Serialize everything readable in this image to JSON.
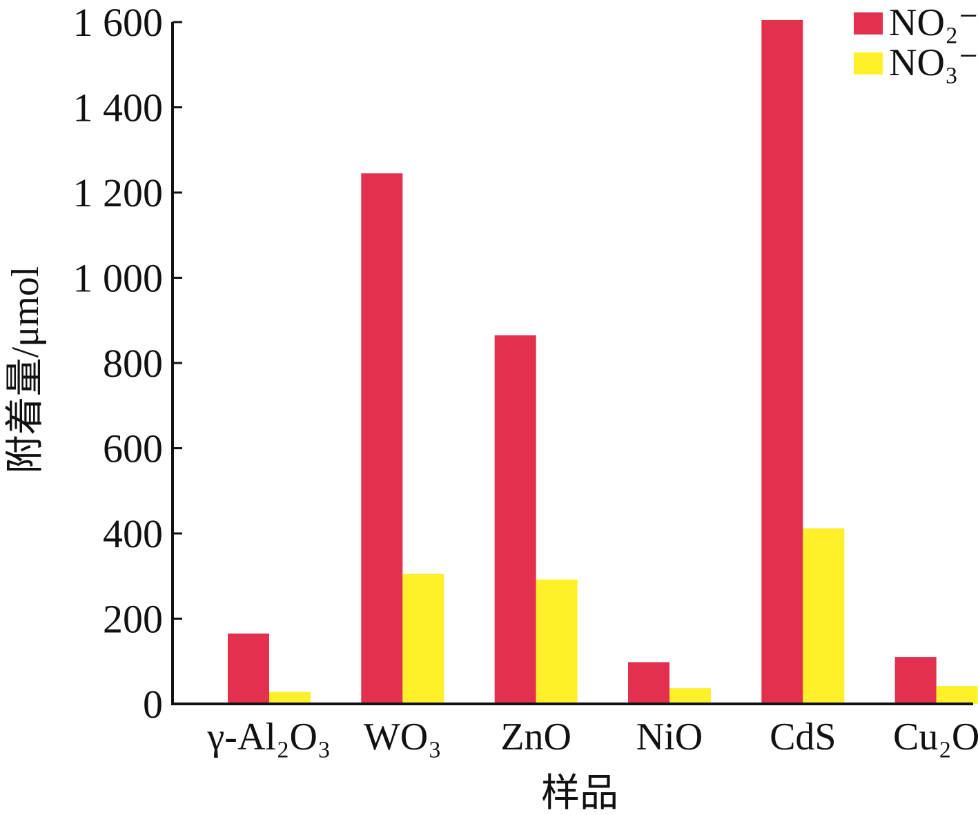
{
  "chart_data": {
    "type": "bar",
    "categories": [
      "γ-Al₂O₃",
      "WO₃",
      "ZnO",
      "NiO",
      "CdS",
      "Cu₂O"
    ],
    "series": [
      {
        "name": "NO₂⁻",
        "color": "#e4304f",
        "values": [
          165,
          1245,
          865,
          98,
          1605,
          110
        ]
      },
      {
        "name": "NO₃⁻",
        "color": "#fff02a",
        "values": [
          28,
          305,
          292,
          37,
          412,
          42
        ]
      }
    ],
    "xlabel": "样品",
    "ylabel": "附着量/μmol",
    "ylim": [
      0,
      1600
    ],
    "yticks": [
      0,
      200,
      400,
      600,
      800,
      1000,
      1200,
      1400,
      1600
    ],
    "ytick_labels": [
      "0",
      "200",
      "400",
      "600",
      "800",
      "1 000",
      "1 200",
      "1 400",
      "1 600"
    ],
    "grid": false,
    "legend_position": "top-right"
  }
}
